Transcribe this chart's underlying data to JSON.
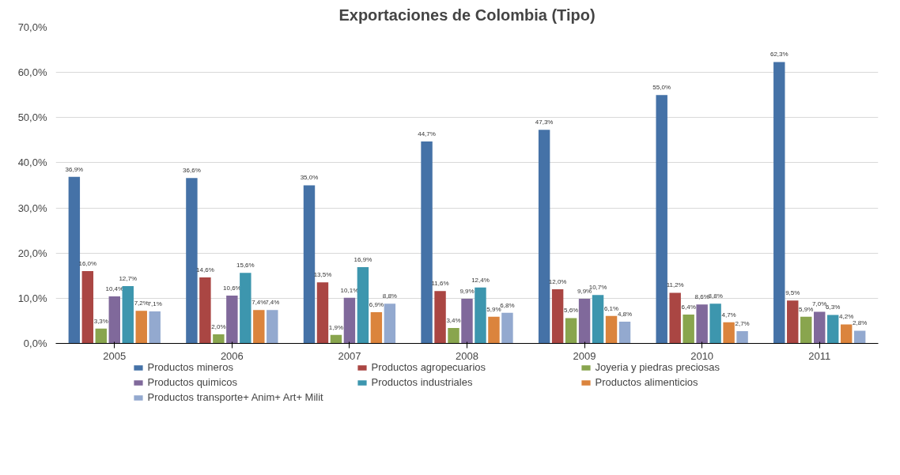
{
  "chart_data": {
    "type": "bar",
    "title": "Exportaciones de Colombia (Tipo)",
    "categories": [
      "2005",
      "2006",
      "2007",
      "2008",
      "2009",
      "2010",
      "2011"
    ],
    "ylim": [
      0,
      70
    ],
    "yticks": [
      {
        "value": 0,
        "label": "0,0%"
      },
      {
        "value": 10,
        "label": "10,0%"
      },
      {
        "value": 20,
        "label": "20,0%"
      },
      {
        "value": 30,
        "label": "30,0%"
      },
      {
        "value": 40,
        "label": "40,0%"
      },
      {
        "value": 50,
        "label": "50,0%"
      },
      {
        "value": 60,
        "label": "60,0%"
      },
      {
        "value": 70,
        "label": "70,0%"
      }
    ],
    "grid": "y",
    "legend": "bottom",
    "series": [
      {
        "name": "Productos mineros",
        "color": "#4572a7",
        "values": [
          36.9,
          36.6,
          35.0,
          44.7,
          47.3,
          55.0,
          62.3
        ],
        "value_labels": [
          "36,9%",
          "36,6%",
          "35,0%",
          "44,7%",
          "47,3%",
          "55,0%",
          "62,3%"
        ]
      },
      {
        "name": "Productos agropecuarios",
        "color": "#aa4643",
        "values": [
          16.0,
          14.6,
          13.5,
          11.6,
          12.0,
          11.2,
          9.5
        ],
        "value_labels": [
          "16,0%",
          "14,6%",
          "13,5%",
          "11,6%",
          "12,0%",
          "11,2%",
          "9,5%"
        ]
      },
      {
        "name": "Joyeria y piedras preciosas",
        "color": "#89a54e",
        "values": [
          3.3,
          2.0,
          1.9,
          3.4,
          5.6,
          6.4,
          5.9
        ],
        "value_labels": [
          "3,3%",
          "2,0%",
          "1,9%",
          "3,4%",
          "5,6%",
          "6,4%",
          "5,9%"
        ]
      },
      {
        "name": "Productos quimicos",
        "color": "#80699b",
        "values": [
          10.4,
          10.6,
          10.1,
          9.9,
          9.9,
          8.6,
          7.0
        ],
        "value_labels": [
          "10,4%",
          "10,6%",
          "10,1%",
          "9,9%",
          "9,9%",
          "8,6%",
          "7,0%"
        ]
      },
      {
        "name": "Productos industriales",
        "color": "#3d96ae",
        "values": [
          12.7,
          15.6,
          16.9,
          12.4,
          10.7,
          8.8,
          6.3
        ],
        "value_labels": [
          "12,7%",
          "15,6%",
          "16,9%",
          "12,4%",
          "10,7%",
          "8,8%",
          "6,3%"
        ]
      },
      {
        "name": "Productos alimenticios",
        "color": "#db843d",
        "values": [
          7.2,
          7.4,
          6.9,
          5.9,
          6.1,
          4.7,
          4.2
        ],
        "value_labels": [
          "7,2%",
          "7,4%",
          "6,9%",
          "5,9%",
          "6,1%",
          "4,7%",
          "4,2%"
        ]
      },
      {
        "name": "Productos transporte+ Anim+ Art+ Milit",
        "color": "#93a9cf",
        "values": [
          7.1,
          7.4,
          8.8,
          6.8,
          4.8,
          2.7,
          2.8
        ],
        "value_labels": [
          "7,1%",
          "7,4%",
          "8,8%",
          "6,8%",
          "4,8%",
          "2,7%",
          "2,8%"
        ]
      }
    ]
  }
}
